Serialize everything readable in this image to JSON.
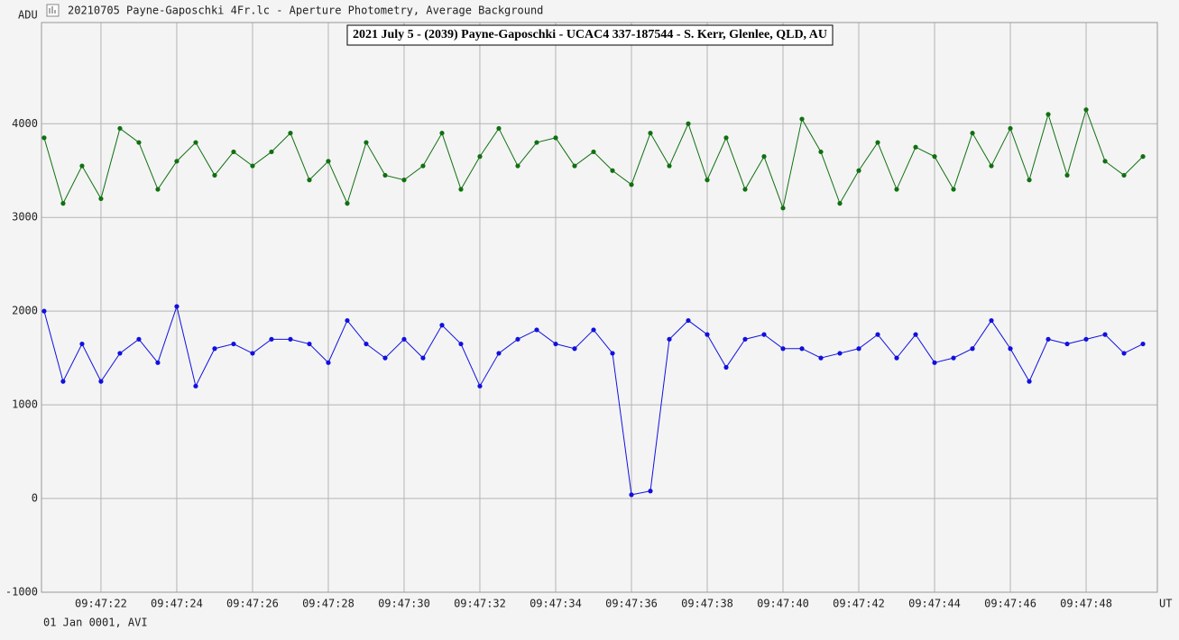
{
  "chart_data": {
    "type": "line",
    "window_title": "20210705 Payne-Gaposchki 4Fr.lc - Aperture Photometry, Average Background",
    "title": "2021 July 5 - (2039) Payne-Gaposchki - UCAC4 337-187544 - S. Kerr, Glenlee, QLD, AU",
    "ylabel": "ADU",
    "xlabel": "UT",
    "footer": "01 Jan 0001, AVI",
    "grid": true,
    "xlim": [
      20.43,
      49.88
    ],
    "ylim": [
      -1000,
      5080
    ],
    "yticks": [
      -1000,
      0,
      1000,
      2000,
      3000,
      4000
    ],
    "xticks": [
      {
        "value": 22,
        "label": "09:47:22"
      },
      {
        "value": 24,
        "label": "09:47:24"
      },
      {
        "value": 26,
        "label": "09:47:26"
      },
      {
        "value": 28,
        "label": "09:47:28"
      },
      {
        "value": 30,
        "label": "09:47:30"
      },
      {
        "value": 32,
        "label": "09:47:32"
      },
      {
        "value": 34,
        "label": "09:47:34"
      },
      {
        "value": 36,
        "label": "09:47:36"
      },
      {
        "value": 38,
        "label": "09:47:38"
      },
      {
        "value": 40,
        "label": "09:47:40"
      },
      {
        "value": 42,
        "label": "09:47:42"
      },
      {
        "value": 44,
        "label": "09:47:44"
      },
      {
        "value": 46,
        "label": "09:47:46"
      },
      {
        "value": 48,
        "label": "09:47:48"
      }
    ],
    "x": [
      20.5,
      21,
      21.5,
      22,
      22.5,
      23,
      23.5,
      24,
      24.5,
      25,
      25.5,
      26,
      26.5,
      27,
      27.5,
      28,
      28.5,
      29,
      29.5,
      30,
      30.5,
      31,
      31.5,
      32,
      32.5,
      33,
      33.5,
      34,
      34.5,
      35,
      35.5,
      36,
      36.5,
      37,
      37.5,
      38,
      38.5,
      39,
      39.5,
      40,
      40.5,
      41,
      41.5,
      42,
      42.5,
      43,
      43.5,
      44,
      44.5,
      45,
      45.5,
      46,
      46.5,
      47,
      47.5,
      48,
      48.5,
      49,
      49.5
    ],
    "series": [
      {
        "color": "#107010",
        "values": [
          3850,
          3150,
          3550,
          3200,
          3950,
          3800,
          3300,
          3600,
          3800,
          3450,
          3700,
          3550,
          3700,
          3900,
          3400,
          3600,
          3150,
          3800,
          3450,
          3400,
          3550,
          3900,
          3300,
          3650,
          3950,
          3550,
          3800,
          3850,
          3550,
          3700,
          3500,
          3350,
          3900,
          3550,
          4000,
          3400,
          3850,
          3300,
          3650,
          3100,
          4050,
          3700,
          3150,
          3500,
          3800,
          3300,
          3750,
          3650,
          3300,
          3900,
          3550,
          3950,
          3400,
          4100,
          3450,
          4150,
          3600,
          3450,
          3650
        ]
      },
      {
        "color": "#1010e0",
        "values": [
          2000,
          1250,
          1650,
          1250,
          1550,
          1700,
          1450,
          2050,
          1200,
          1600,
          1650,
          1550,
          1700,
          1700,
          1650,
          1450,
          1900,
          1650,
          1500,
          1700,
          1500,
          1850,
          1650,
          1200,
          1550,
          1700,
          1800,
          1650,
          1600,
          1800,
          1550,
          40,
          80,
          1700,
          1900,
          1750,
          1400,
          1700,
          1750,
          1600,
          1600,
          1500,
          1550,
          1600,
          1750,
          1500,
          1750,
          1450,
          1500,
          1600,
          1900,
          1600,
          1250,
          1700,
          1650,
          1700,
          1750,
          1550,
          1650
        ]
      }
    ]
  }
}
